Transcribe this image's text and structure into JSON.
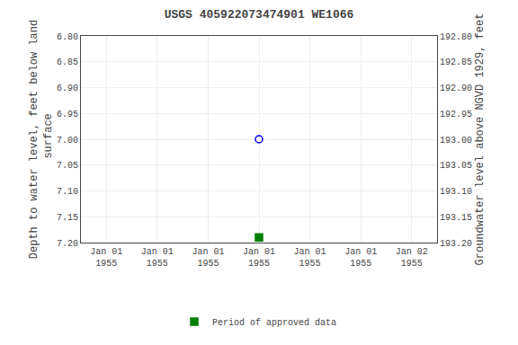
{
  "chart_data": {
    "type": "scatter",
    "title": "USGS 405922073474901 WE1066",
    "y_label": "Depth to water level, feet below land\n surface",
    "y2_label": "Groundwater level above NGVD 1929, feet",
    "categories": [
      "Jan 01\n1955",
      "Jan 01\n1955",
      "Jan 01\n1955",
      "Jan 01\n1955",
      "Jan 01\n1955",
      "Jan 01\n1955",
      "Jan 02\n1955"
    ],
    "series": [
      {
        "color": "blue",
        "marker": "circle-open",
        "values": [
          null,
          null,
          null,
          7.0,
          null,
          null,
          null
        ]
      },
      {
        "name": "Period of approved data",
        "color": "#008000",
        "marker": "square",
        "values": [
          null,
          null,
          null,
          7.19,
          null,
          null,
          null
        ]
      }
    ],
    "ylim": [
      7.2,
      6.8
    ],
    "yticks": [
      {
        "value": 6.8,
        "label": "6.80"
      },
      6.85,
      {
        "value": 6.9,
        "label": "6.90"
      },
      6.95,
      {
        "value": 7.0,
        "label": "7.00"
      },
      7.05,
      {
        "value": 7.1,
        "label": "7.10"
      },
      7.15,
      {
        "value": 7.2,
        "label": "7.20"
      }
    ],
    "y2lim": [
      193.2,
      192.8
    ],
    "y2ticks": [
      {
        "value": 193.2,
        "label": "193.20"
      },
      193.15,
      {
        "value": 193.1,
        "label": "193.10"
      },
      193.05,
      {
        "value": 193.0,
        "label": "193.00"
      },
      192.95,
      {
        "value": 192.9,
        "label": "192.90"
      },
      192.85,
      {
        "value": 192.8,
        "label": "192.80"
      }
    ],
    "grid": true,
    "legend": "lower center"
  }
}
